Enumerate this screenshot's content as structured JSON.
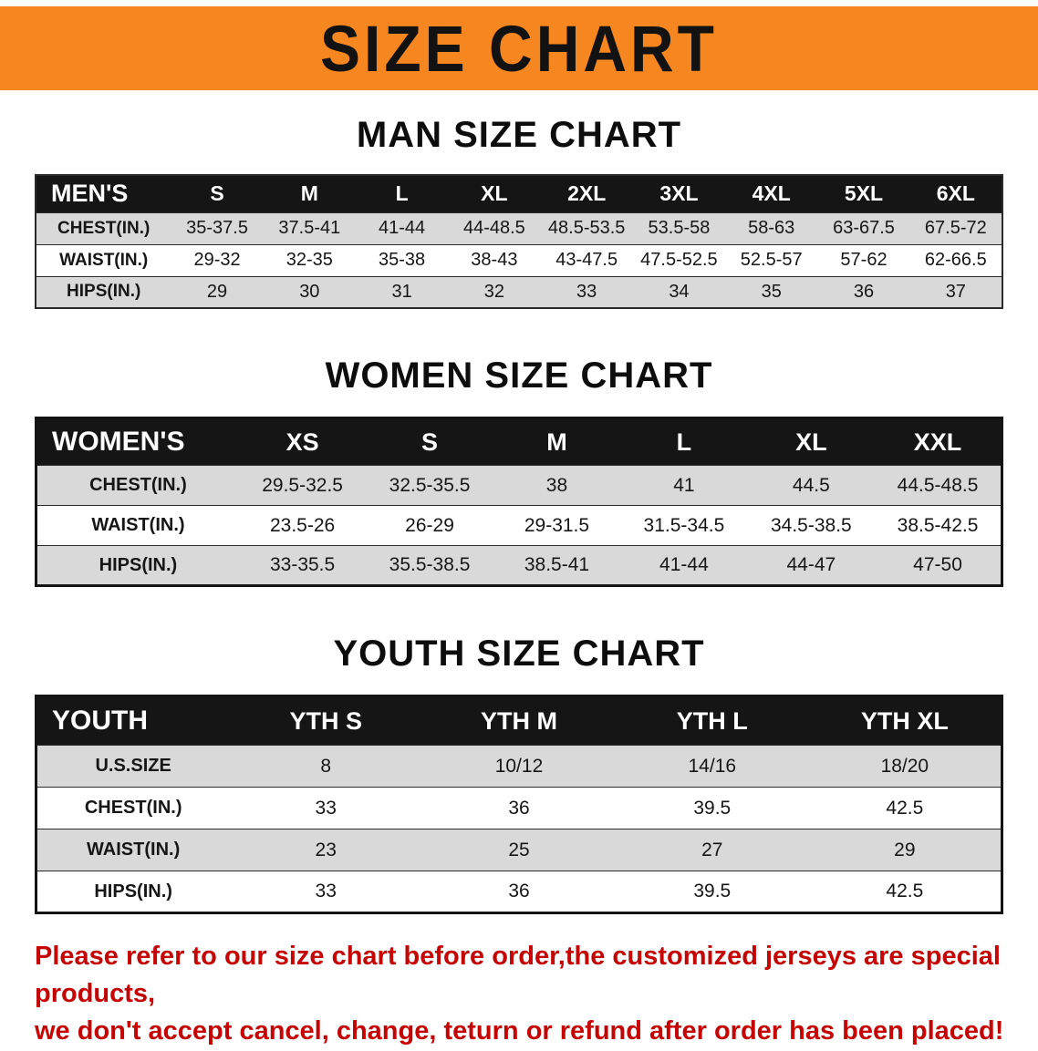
{
  "banner": {
    "title": "SIZE CHART"
  },
  "colors": {
    "banner_bg": "#f6861f",
    "table_header_bg": "#151515",
    "row_shade": "#d9d9d9",
    "disclaimer_text": "#c50404"
  },
  "sections": [
    {
      "heading": "MAN SIZE CHART",
      "table": {
        "header": [
          "MEN'S",
          "S",
          "M",
          "L",
          "XL",
          "2XL",
          "3XL",
          "4XL",
          "5XL",
          "6XL"
        ],
        "rows": [
          [
            "CHEST(IN.)",
            "35-37.5",
            "37.5-41",
            "41-44",
            "44-48.5",
            "48.5-53.5",
            "53.5-58",
            "58-63",
            "63-67.5",
            "67.5-72"
          ],
          [
            "WAIST(IN.)",
            "29-32",
            "32-35",
            "35-38",
            "38-43",
            "43-47.5",
            "47.5-52.5",
            "52.5-57",
            "57-62",
            "62-66.5"
          ],
          [
            "HIPS(IN.)",
            "29",
            "30",
            "31",
            "32",
            "33",
            "34",
            "35",
            "36",
            "37"
          ]
        ]
      }
    },
    {
      "heading": "WOMEN SIZE CHART",
      "table": {
        "header": [
          "WOMEN'S",
          "XS",
          "S",
          "M",
          "L",
          "XL",
          "XXL"
        ],
        "rows": [
          [
            "CHEST(IN.)",
            "29.5-32.5",
            "32.5-35.5",
            "38",
            "41",
            "44.5",
            "44.5-48.5"
          ],
          [
            "WAIST(IN.)",
            "23.5-26",
            "26-29",
            "29-31.5",
            "31.5-34.5",
            "34.5-38.5",
            "38.5-42.5"
          ],
          [
            "HIPS(IN.)",
            "33-35.5",
            "35.5-38.5",
            "38.5-41",
            "41-44",
            "44-47",
            "47-50"
          ]
        ]
      }
    },
    {
      "heading": "YOUTH SIZE CHART",
      "table": {
        "header": [
          "YOUTH",
          "YTH S",
          "YTH M",
          "YTH L",
          "YTH XL"
        ],
        "rows": [
          [
            "U.S.SIZE",
            "8",
            "10/12",
            "14/16",
            "18/20"
          ],
          [
            "CHEST(IN.)",
            "33",
            "36",
            "39.5",
            "42.5"
          ],
          [
            "WAIST(IN.)",
            "23",
            "25",
            "27",
            "29"
          ],
          [
            "HIPS(IN.)",
            "33",
            "36",
            "39.5",
            "42.5"
          ]
        ]
      }
    }
  ],
  "footer": {
    "line1": "Please refer to our size chart before order,the customized jerseys are special products,",
    "line2": "we don't accept cancel, change, teturn or refund after order has been placed!"
  }
}
